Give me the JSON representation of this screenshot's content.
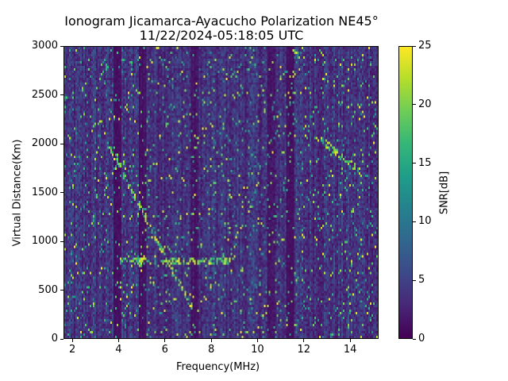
{
  "chart_data": {
    "type": "heatmap",
    "title": "Ionogram Jicamarca-Ayacucho Polarization NE45°",
    "subtitle": "11/22/2024-05:18:05 UTC",
    "xlabel": "Frequency(MHz)",
    "ylabel": "Virtual Distance(Km)",
    "xlim": [
      1.62,
      15.23
    ],
    "ylim": [
      0,
      3000
    ],
    "xticks": [
      2,
      4,
      6,
      8,
      10,
      12,
      14
    ],
    "yticks": [
      0,
      500,
      1000,
      1500,
      2000,
      2500,
      3000
    ],
    "colorbar": {
      "label": "SNR[dB]",
      "range": [
        0,
        25
      ],
      "ticks": [
        0,
        5,
        10,
        15,
        20,
        25
      ],
      "colormap": "viridis"
    },
    "background_snr_db": 4,
    "low_snr_bands_mhz": [
      3.9,
      5.0,
      7.3,
      10.6,
      11.4
    ],
    "trace_features": [
      {
        "name": "descending trace",
        "freq_mhz": [
          3.5,
          7.2
        ],
        "distance_km": [
          2000,
          300
        ]
      },
      {
        "name": "echo band",
        "freq_mhz": [
          4.0,
          9.0
        ],
        "distance_km": [
          800,
          800
        ]
      },
      {
        "name": "oblique trace",
        "freq_mhz": [
          12.5,
          14.5
        ],
        "distance_km": [
          2100,
          1700
        ]
      }
    ]
  }
}
